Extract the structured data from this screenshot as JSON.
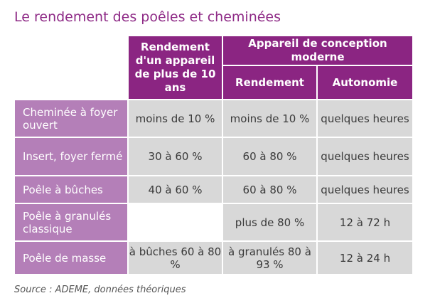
{
  "title": "Le rendement des poêles et cheminées",
  "table": {
    "header": {
      "col1": "Rendement d'un appareil de plus de 10 ans",
      "group": "Appareil de conception moderne",
      "sub1": "Rendement",
      "sub2": "Autonomie"
    },
    "rows": [
      {
        "label": "Cheminée à foyer ouvert",
        "old": "moins de 10 %",
        "modern": "moins de 10 %",
        "autonomy": "quelques heures"
      },
      {
        "label": "Insert, foyer fermé",
        "old": "30 à 60 %",
        "modern": "60 à 80 %",
        "autonomy": "quelques heures"
      },
      {
        "label": "Poêle à bûches",
        "old": "40 à 60 %",
        "modern": "60 à 80 %",
        "autonomy": "quelques heures"
      },
      {
        "label": "Poêle à granulés classique",
        "old": "",
        "modern": "plus de 80 %",
        "autonomy": "12 à 72 h"
      },
      {
        "label": "Poêle de masse",
        "old": "à bûches 60 à 80 %",
        "modern": "à granulés 80 à 93 %",
        "autonomy": "12 à 24 h"
      }
    ]
  },
  "source": "Source : ADEME, données théoriques",
  "colors": {
    "header": "#8b2582",
    "row_label": "#b47fb8",
    "cell": "#d8d8d8",
    "title": "#8e2a86"
  }
}
